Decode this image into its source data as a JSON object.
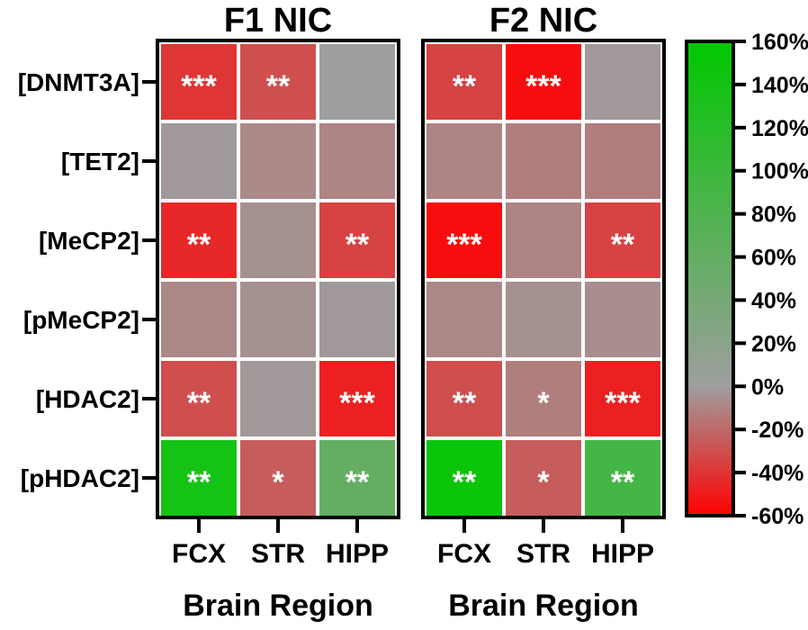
{
  "chart_data": {
    "type": "heatmap",
    "y_scale_kind": "categorical",
    "rows": [
      "[DNMT3A]",
      "[TET2]",
      "[MeCP2]",
      "[pMeCP2]",
      "[HDAC2]",
      "[pHDAC2]"
    ],
    "colorbar": {
      "min": -60,
      "max": 160,
      "ticks": [
        "160%",
        "140%",
        "120%",
        "100%",
        "80%",
        "60%",
        "40%",
        "20%",
        "0%",
        "-20%",
        "-40%",
        "-60%"
      ],
      "colors": {
        "low": "#ff0000",
        "mid": "#9e9e9e",
        "high": "#00c800"
      }
    },
    "panels": [
      {
        "title": "F1 NIC",
        "columns": [
          "FCX",
          "STR",
          "HIPP"
        ],
        "xlabel": "Brain Region",
        "values": [
          [
            -40,
            -30,
            2
          ],
          [
            -2,
            -8,
            -10
          ],
          [
            -45,
            -5,
            -35
          ],
          [
            -8,
            -5,
            -2
          ],
          [
            -30,
            -2,
            -48
          ],
          [
            140,
            -25,
            60
          ]
        ],
        "significance": [
          [
            "***",
            "**",
            ""
          ],
          [
            "",
            "",
            ""
          ],
          [
            "**",
            "",
            "**"
          ],
          [
            "",
            "",
            ""
          ],
          [
            "**",
            "",
            "***"
          ],
          [
            "**",
            "*",
            "**"
          ]
        ]
      },
      {
        "title": "F2 NIC",
        "columns": [
          "FCX",
          "STR",
          "HIPP"
        ],
        "xlabel": "Brain Region",
        "values": [
          [
            -35,
            -55,
            -2
          ],
          [
            -10,
            -12,
            -12
          ],
          [
            -55,
            -10,
            -35
          ],
          [
            -8,
            -5,
            -6
          ],
          [
            -30,
            -12,
            -48
          ],
          [
            150,
            -25,
            90
          ]
        ],
        "significance": [
          [
            "**",
            "***",
            ""
          ],
          [
            "",
            "",
            ""
          ],
          [
            "***",
            "",
            "**"
          ],
          [
            "",
            "",
            ""
          ],
          [
            "**",
            "*",
            "***"
          ],
          [
            "**",
            "*",
            "**"
          ]
        ]
      }
    ]
  }
}
